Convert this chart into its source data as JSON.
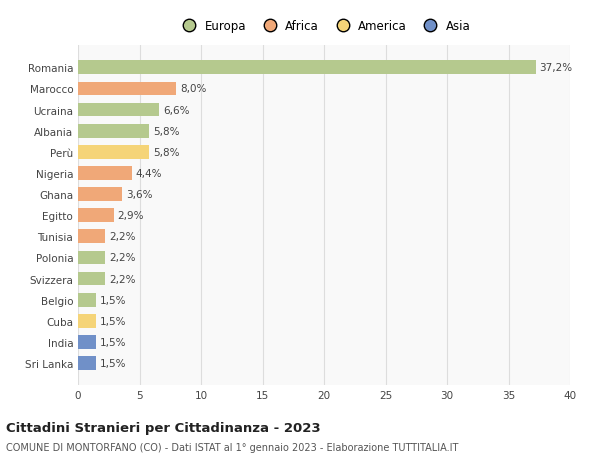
{
  "countries": [
    "Romania",
    "Marocco",
    "Ucraina",
    "Albania",
    "Perù",
    "Nigeria",
    "Ghana",
    "Egitto",
    "Tunisia",
    "Polonia",
    "Svizzera",
    "Belgio",
    "Cuba",
    "India",
    "Sri Lanka"
  ],
  "values": [
    37.2,
    8.0,
    6.6,
    5.8,
    5.8,
    4.4,
    3.6,
    2.9,
    2.2,
    2.2,
    2.2,
    1.5,
    1.5,
    1.5,
    1.5
  ],
  "labels": [
    "37,2%",
    "8,0%",
    "6,6%",
    "5,8%",
    "5,8%",
    "4,4%",
    "3,6%",
    "2,9%",
    "2,2%",
    "2,2%",
    "2,2%",
    "1,5%",
    "1,5%",
    "1,5%",
    "1,5%"
  ],
  "continents": [
    "Europa",
    "Africa",
    "Europa",
    "Europa",
    "America",
    "Africa",
    "Africa",
    "Africa",
    "Africa",
    "Europa",
    "Europa",
    "Europa",
    "America",
    "Asia",
    "Asia"
  ],
  "continent_colors": {
    "Europa": "#b5c98e",
    "Africa": "#f0a878",
    "America": "#f5d478",
    "Asia": "#7090c8"
  },
  "legend_items": [
    "Europa",
    "Africa",
    "America",
    "Asia"
  ],
  "legend_colors": [
    "#b5c98e",
    "#f0a878",
    "#f5d478",
    "#7090c8"
  ],
  "title": "Cittadini Stranieri per Cittadinanza - 2023",
  "subtitle": "COMUNE DI MONTORFANO (CO) - Dati ISTAT al 1° gennaio 2023 - Elaborazione TUTTITALIA.IT",
  "xlim": [
    0,
    40
  ],
  "xticks": [
    0,
    5,
    10,
    15,
    20,
    25,
    30,
    35,
    40
  ],
  "background_color": "#ffffff",
  "plot_bg_color": "#f9f9f9",
  "grid_color": "#dddddd",
  "bar_height": 0.65,
  "label_fontsize": 7.5,
  "tick_fontsize": 7.5,
  "title_fontsize": 9.5,
  "subtitle_fontsize": 7.0
}
